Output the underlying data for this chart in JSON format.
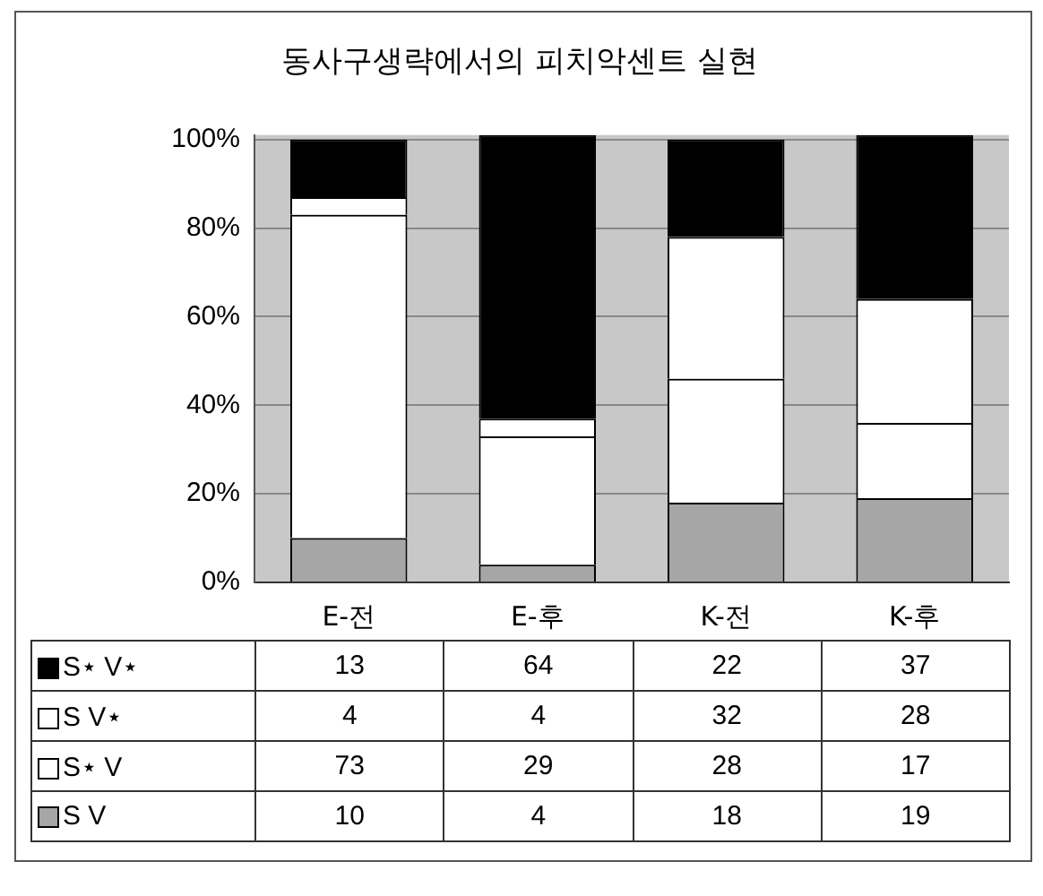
{
  "chart_data": {
    "type": "bar",
    "stacked": true,
    "title": "동사구생략에서의 피치악센트 실현",
    "categories": [
      "E-전",
      "E-후",
      "K-전",
      "K-후"
    ],
    "series": [
      {
        "name": "S V",
        "color": "#a6a6a6",
        "values": [
          10,
          4,
          18,
          19
        ]
      },
      {
        "name": "S⋆ V",
        "color": "#ffffff",
        "values": [
          73,
          29,
          28,
          17
        ]
      },
      {
        "name": "S V⋆",
        "color": "#ffffff",
        "values": [
          4,
          4,
          32,
          28
        ]
      },
      {
        "name": "S⋆ V⋆",
        "color": "#000000",
        "values": [
          13,
          64,
          22,
          37
        ]
      }
    ],
    "ylim": [
      0,
      101
    ],
    "yticks": [
      {
        "value": 0,
        "label": "0%"
      },
      {
        "value": 20,
        "label": "20%"
      },
      {
        "value": 40,
        "label": "40%"
      },
      {
        "value": 60,
        "label": "60%"
      },
      {
        "value": 80,
        "label": "80%"
      },
      {
        "value": 100,
        "label": "100%"
      }
    ],
    "grid": "y",
    "legend": "bottom",
    "data_labels": true
  }
}
